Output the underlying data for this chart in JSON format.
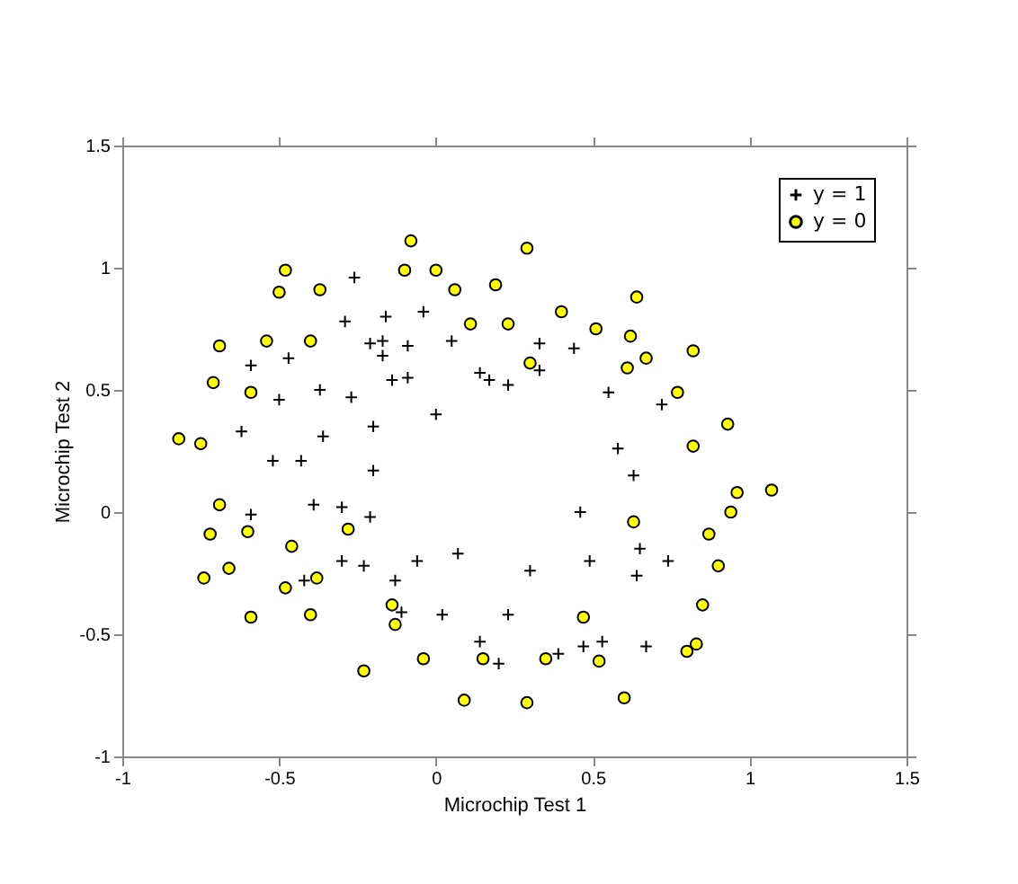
{
  "chart_data": {
    "type": "scatter",
    "xlabel": "Microchip Test 1",
    "ylabel": "Microchip Test 2",
    "xlim": [
      -1,
      1.5
    ],
    "ylim": [
      -1,
      1.5
    ],
    "xticks": [
      -1,
      -0.5,
      0,
      0.5,
      1,
      1.5
    ],
    "yticks": [
      -1,
      -0.5,
      0,
      0.5,
      1,
      1.5
    ],
    "grid": false,
    "legend": "top right",
    "series": [
      {
        "name": "y = 1",
        "color": "#000000",
        "marker": "cross",
        "x": [
          -0.26,
          -0.16,
          -0.04,
          -0.29,
          -0.21,
          -0.17,
          -0.17,
          -0.09,
          0.05,
          -0.59,
          -0.47,
          -0.14,
          -0.09,
          0.14,
          0.17,
          0.23,
          -0.5,
          -0.37,
          -0.27,
          0.0,
          -0.62,
          -0.2,
          -0.36,
          -0.52,
          -0.43,
          -0.2,
          -0.59,
          -0.39,
          -0.3,
          -0.21,
          0.33,
          0.44,
          0.33,
          0.55,
          0.72,
          0.58,
          0.63,
          0.46,
          -0.3,
          -0.23,
          -0.06,
          0.07,
          -0.13,
          -0.42,
          -0.11,
          0.02,
          0.23,
          0.14,
          0.2,
          0.65,
          0.49,
          0.74,
          0.3,
          0.64,
          0.39,
          0.47,
          0.53,
          0.67
        ],
        "values": [
          0.96,
          0.8,
          0.82,
          0.78,
          0.69,
          0.7,
          0.64,
          0.68,
          0.7,
          0.6,
          0.63,
          0.54,
          0.55,
          0.57,
          0.54,
          0.52,
          0.46,
          0.5,
          0.47,
          0.4,
          0.33,
          0.35,
          0.31,
          0.21,
          0.21,
          0.17,
          -0.01,
          0.03,
          0.02,
          -0.02,
          0.69,
          0.67,
          0.58,
          0.49,
          0.44,
          0.26,
          0.15,
          0.0,
          -0.2,
          -0.22,
          -0.2,
          -0.17,
          -0.28,
          -0.28,
          -0.41,
          -0.42,
          -0.42,
          -0.53,
          -0.62,
          -0.15,
          -0.2,
          -0.2,
          -0.24,
          -0.26,
          -0.58,
          -0.55,
          -0.53,
          -0.55
        ]
      },
      {
        "name": "y = 0",
        "color": "#ffff00",
        "marker": "circle",
        "x": [
          -0.08,
          -0.48,
          -0.1,
          0.0,
          -0.5,
          -0.37,
          0.06,
          0.19,
          -0.69,
          -0.54,
          -0.4,
          0.11,
          0.23,
          -0.71,
          -0.59,
          -0.82,
          -0.75,
          -0.69,
          0.29,
          0.64,
          0.4,
          0.51,
          0.62,
          0.3,
          0.61,
          0.67,
          0.82,
          0.77,
          0.93,
          0.82,
          0.96,
          1.07,
          0.94,
          0.63,
          -0.72,
          -0.6,
          -0.28,
          -0.46,
          -0.66,
          -0.74,
          -0.38,
          -0.48,
          -0.59,
          -0.4,
          -0.14,
          -0.13,
          -0.04,
          0.15,
          -0.23,
          0.09,
          0.87,
          0.9,
          0.85,
          0.47,
          0.83,
          0.8,
          0.35,
          0.52,
          0.29,
          0.6
        ],
        "values": [
          1.11,
          0.99,
          0.99,
          0.99,
          0.9,
          0.91,
          0.91,
          0.93,
          0.68,
          0.7,
          0.7,
          0.77,
          0.77,
          0.53,
          0.49,
          0.3,
          0.28,
          0.03,
          1.08,
          0.88,
          0.82,
          0.75,
          0.72,
          0.61,
          0.59,
          0.63,
          0.66,
          0.49,
          0.36,
          0.27,
          0.08,
          0.09,
          0.0,
          -0.04,
          -0.09,
          -0.08,
          -0.07,
          -0.14,
          -0.23,
          -0.27,
          -0.27,
          -0.31,
          -0.43,
          -0.42,
          -0.38,
          -0.46,
          -0.6,
          -0.6,
          -0.65,
          -0.77,
          -0.09,
          -0.22,
          -0.38,
          -0.43,
          -0.54,
          -0.57,
          -0.6,
          -0.61,
          -0.78,
          -0.76
        ]
      }
    ]
  }
}
